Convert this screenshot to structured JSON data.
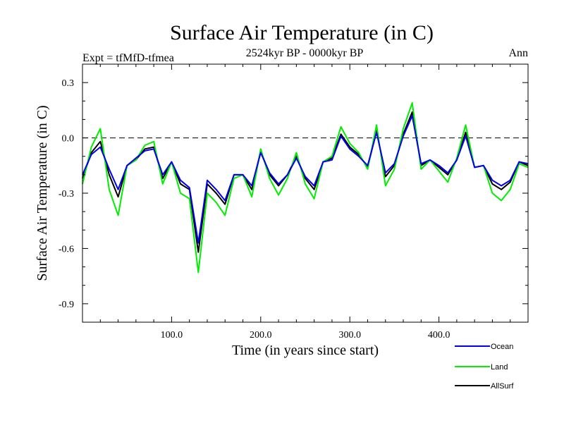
{
  "chart_data": {
    "type": "line",
    "title": "Surface Air Temperature (in C)",
    "subtitle": "2524kyr BP - 0000kyr BP",
    "left_label": "Expt = tfMfD-tfmea",
    "right_label": "Ann",
    "xlabel": "Time (in years since start)",
    "ylabel": "Surface Air Temperature (in C)",
    "xlim": [
      0,
      500
    ],
    "ylim": [
      -1.0,
      0.4
    ],
    "x_ticks": [
      100,
      200,
      300,
      400
    ],
    "x_tick_labels": [
      "100.0",
      "200.0",
      "300.0",
      "400.0"
    ],
    "y_ticks": [
      0.3,
      0.0,
      -0.3,
      -0.6,
      -0.9
    ],
    "y_tick_labels": [
      "0.3",
      "0.0",
      "-0.3",
      "-0.6",
      "-0.9"
    ],
    "reference_line": 0.0,
    "legend_position": "bottom-right",
    "x_step": 10,
    "series": [
      {
        "name": "AllSurf",
        "color": "#000000",
        "values": [
          -0.22,
          -0.08,
          -0.02,
          -0.2,
          -0.32,
          -0.15,
          -0.12,
          -0.06,
          -0.05,
          -0.22,
          -0.13,
          -0.25,
          -0.28,
          -0.62,
          -0.25,
          -0.3,
          -0.36,
          -0.2,
          -0.2,
          -0.28,
          -0.07,
          -0.2,
          -0.26,
          -0.2,
          -0.1,
          -0.22,
          -0.28,
          -0.13,
          -0.11,
          0.02,
          -0.05,
          -0.09,
          -0.16,
          0.04,
          -0.21,
          -0.15,
          0.02,
          0.14,
          -0.15,
          -0.12,
          -0.16,
          -0.2,
          -0.12,
          0.03,
          -0.16,
          -0.15,
          -0.25,
          -0.28,
          -0.24,
          -0.13,
          -0.15
        ]
      },
      {
        "name": "Land",
        "color": "#00ee00",
        "values": [
          -0.25,
          -0.05,
          0.05,
          -0.28,
          -0.42,
          -0.15,
          -0.12,
          -0.04,
          -0.02,
          -0.25,
          -0.13,
          -0.3,
          -0.33,
          -0.73,
          -0.3,
          -0.35,
          -0.42,
          -0.22,
          -0.2,
          -0.32,
          -0.06,
          -0.22,
          -0.31,
          -0.22,
          -0.08,
          -0.25,
          -0.33,
          -0.13,
          -0.1,
          0.06,
          -0.03,
          -0.08,
          -0.17,
          0.07,
          -0.26,
          -0.17,
          0.05,
          0.19,
          -0.17,
          -0.12,
          -0.18,
          -0.24,
          -0.11,
          0.07,
          -0.16,
          -0.15,
          -0.3,
          -0.34,
          -0.28,
          -0.14,
          -0.16
        ]
      },
      {
        "name": "Ocean",
        "color": "#0000ee",
        "values": [
          -0.2,
          -0.09,
          -0.05,
          -0.17,
          -0.28,
          -0.15,
          -0.11,
          -0.07,
          -0.06,
          -0.2,
          -0.13,
          -0.23,
          -0.27,
          -0.57,
          -0.23,
          -0.28,
          -0.34,
          -0.2,
          -0.2,
          -0.26,
          -0.08,
          -0.19,
          -0.25,
          -0.2,
          -0.11,
          -0.21,
          -0.26,
          -0.13,
          -0.12,
          0.01,
          -0.06,
          -0.1,
          -0.15,
          0.03,
          -0.19,
          -0.14,
          0.01,
          0.12,
          -0.14,
          -0.12,
          -0.15,
          -0.19,
          -0.12,
          0.01,
          -0.16,
          -0.15,
          -0.23,
          -0.26,
          -0.23,
          -0.13,
          -0.14
        ]
      }
    ],
    "legend_order": [
      "Ocean",
      "Land",
      "AllSurf"
    ]
  }
}
